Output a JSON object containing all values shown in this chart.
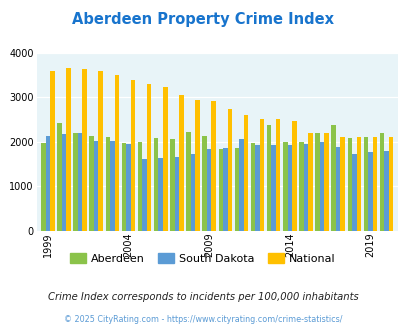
{
  "title": "Aberdeen Property Crime Index",
  "title_color": "#1874CD",
  "subtitle": "Crime Index corresponds to incidents per 100,000 inhabitants",
  "footer": "© 2025 CityRating.com - https://www.cityrating.com/crime-statistics/",
  "years": [
    1999,
    2000,
    2001,
    2002,
    2003,
    2004,
    2005,
    2006,
    2007,
    2008,
    2009,
    2010,
    2011,
    2012,
    2013,
    2014,
    2015,
    2016,
    2017,
    2018,
    2019,
    2020
  ],
  "aberdeen": [
    1980,
    2420,
    2190,
    2140,
    2100,
    1970,
    2000,
    2090,
    2070,
    2230,
    2140,
    1850,
    1860,
    1980,
    2390,
    2000,
    2000,
    2200,
    2380,
    2080,
    2110,
    2200
  ],
  "south_dakota": [
    2140,
    2170,
    2190,
    2010,
    2010,
    1960,
    1620,
    1640,
    1660,
    1730,
    1840,
    1870,
    2060,
    1940,
    1930,
    1920,
    1960,
    2000,
    1890,
    1730,
    1770,
    1800
  ],
  "national": [
    3600,
    3660,
    3640,
    3600,
    3510,
    3380,
    3310,
    3230,
    3050,
    2950,
    2920,
    2740,
    2610,
    2510,
    2510,
    2460,
    2200,
    2190,
    2100,
    2100,
    2100,
    2100
  ],
  "aberdeen_color": "#8bc34a",
  "south_dakota_color": "#5b9bd5",
  "national_color": "#ffc000",
  "bg_color": "#e8f4f8",
  "ylim": [
    0,
    4000
  ],
  "yticks": [
    0,
    1000,
    2000,
    3000,
    4000
  ],
  "milestone_years": [
    1999,
    2004,
    2009,
    2014,
    2019
  ],
  "legend_labels": [
    "Aberdeen",
    "South Dakota",
    "National"
  ]
}
